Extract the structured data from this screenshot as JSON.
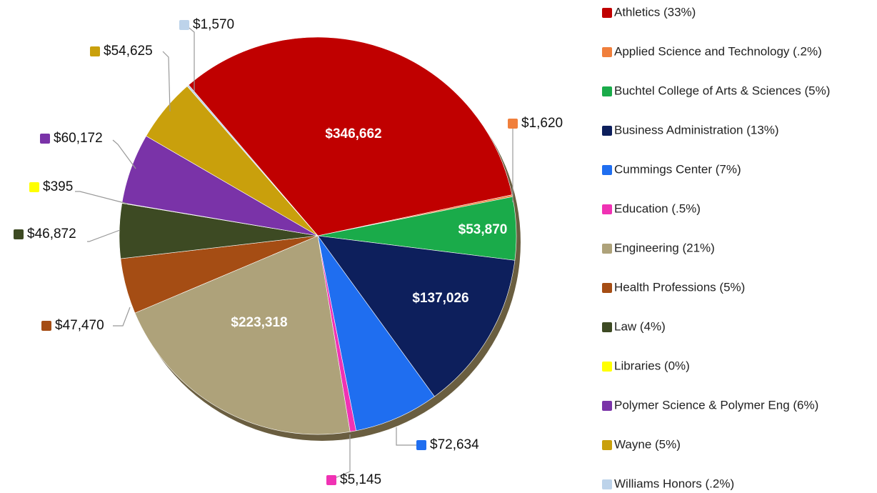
{
  "chart_data": {
    "type": "pie",
    "categories": [
      "Athletics (33%)",
      "Applied Science and Technology (.2%)",
      "Buchtel College of Arts & Sciences (5%)",
      "Business Administration (13%)",
      "Cummings Center (7%)",
      "Education (.5%)",
      "Engineering (21%)",
      "Health Professions (5%)",
      "Law (4%)",
      "Libraries (0%)",
      "Polymer Science & Polymer Eng (6%)",
      "Wayne (5%)",
      "Williams Honors (.2%)"
    ],
    "values": [
      346662,
      1620,
      53870,
      137026,
      72634,
      5145,
      223318,
      47470,
      46872,
      395,
      60172,
      54625,
      1570
    ],
    "value_labels": [
      "$346,662",
      "$1,620",
      "$53,870",
      "$137,026",
      "$72,634",
      "$5,145",
      "$223,318",
      "$47,470",
      "$46,872",
      "$395",
      "$60,172",
      "$54,625",
      "$1,570"
    ],
    "colors": [
      "#c00000",
      "#f07f3c",
      "#1aab4a",
      "#0d1f5c",
      "#1f6ef0",
      "#f032b4",
      "#aea27a",
      "#a54d14",
      "#3d4a23",
      "#ffff00",
      "#7a33a8",
      "#c9a00c",
      "#bdd3ea"
    ],
    "legend": "right"
  }
}
